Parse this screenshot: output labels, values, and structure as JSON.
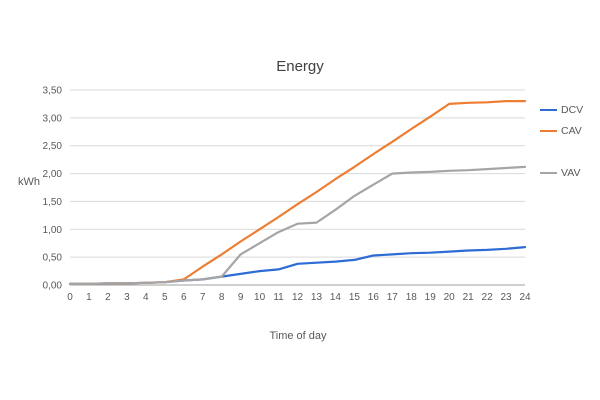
{
  "chart_data": {
    "type": "line",
    "title": "Energy",
    "xlabel": "Time of day",
    "ylabel": "kWh",
    "x": [
      0,
      1,
      2,
      3,
      4,
      5,
      6,
      7,
      8,
      9,
      10,
      11,
      12,
      13,
      14,
      15,
      16,
      17,
      18,
      19,
      20,
      21,
      22,
      23,
      24
    ],
    "ylim": [
      0,
      3.5
    ],
    "yticks": [
      0,
      0.5,
      1,
      1.5,
      2,
      2.5,
      3,
      3.5
    ],
    "ytick_labels": [
      "0,00",
      "0,50",
      "1,00",
      "1,50",
      "2,00",
      "2,50",
      "3,00",
      "3,50"
    ],
    "grid": true,
    "legend_position": "right",
    "series": [
      {
        "name": "DCV",
        "color": "#2E6BD4",
        "values": [
          0.02,
          0.02,
          0.03,
          0.03,
          0.04,
          0.05,
          0.08,
          0.1,
          0.15,
          0.2,
          0.25,
          0.28,
          0.38,
          0.4,
          0.42,
          0.45,
          0.53,
          0.55,
          0.57,
          0.58,
          0.6,
          0.62,
          0.63,
          0.65,
          0.68
        ]
      },
      {
        "name": "CAV",
        "color": "#ED7D31",
        "values": [
          0.02,
          0.02,
          0.03,
          0.03,
          0.04,
          0.05,
          0.1,
          0.33,
          0.55,
          0.78,
          1.0,
          1.22,
          1.45,
          1.67,
          1.9,
          2.12,
          2.35,
          2.57,
          2.8,
          3.02,
          3.25,
          3.27,
          3.28,
          3.3,
          3.3
        ]
      },
      {
        "name": "VAV",
        "color": "#A5A5A5",
        "values": [
          0.02,
          0.02,
          0.03,
          0.03,
          0.04,
          0.05,
          0.08,
          0.1,
          0.15,
          0.55,
          0.75,
          0.95,
          1.1,
          1.12,
          1.35,
          1.6,
          1.8,
          2.0,
          2.02,
          2.03,
          2.05,
          2.06,
          2.08,
          2.1,
          2.12
        ]
      }
    ]
  }
}
